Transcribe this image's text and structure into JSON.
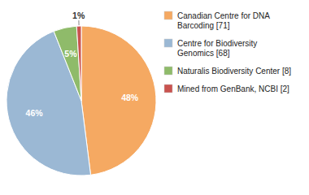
{
  "chart_data": {
    "type": "pie",
    "categories": [
      "Canadian Centre for DNA\nBarcoding [71]",
      "Centre for Biodiversity\nGenomics [68]",
      "Naturalis Biodiversity Center [8]",
      "Mined from GenBank, NCBI [2]"
    ],
    "values": [
      48,
      46,
      5,
      1
    ],
    "value_labels": [
      "48%",
      "46%",
      "5%",
      "1%"
    ],
    "colors": [
      "#F5A962",
      "#9BB8D4",
      "#8FBB6A",
      "#C9534F"
    ],
    "data_labels": true,
    "legend": "right"
  }
}
